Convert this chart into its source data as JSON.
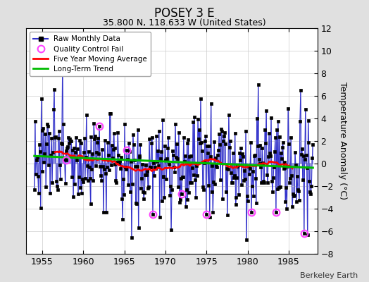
{
  "title": "POSEY 3 E",
  "subtitle": "35.800 N, 118.633 W (United States)",
  "ylabel": "Temperature Anomaly (°C)",
  "credit": "Berkeley Earth",
  "xlim": [
    1953.0,
    1988.5
  ],
  "ylim": [
    -8,
    12
  ],
  "yticks": [
    -8,
    -6,
    -4,
    -2,
    0,
    2,
    4,
    6,
    8,
    10,
    12
  ],
  "xticks": [
    1955,
    1960,
    1965,
    1970,
    1975,
    1980,
    1985
  ],
  "bg_color": "#e0e0e0",
  "plot_bg_color": "#ffffff",
  "line_color": "#3333cc",
  "fill_color": "#8888dd",
  "marker_color": "#000000",
  "qc_color": "#ff44ff",
  "ma_color": "#ff0000",
  "trend_color": "#00bb00",
  "title_fontsize": 12,
  "subtitle_fontsize": 9,
  "seed": 12345
}
